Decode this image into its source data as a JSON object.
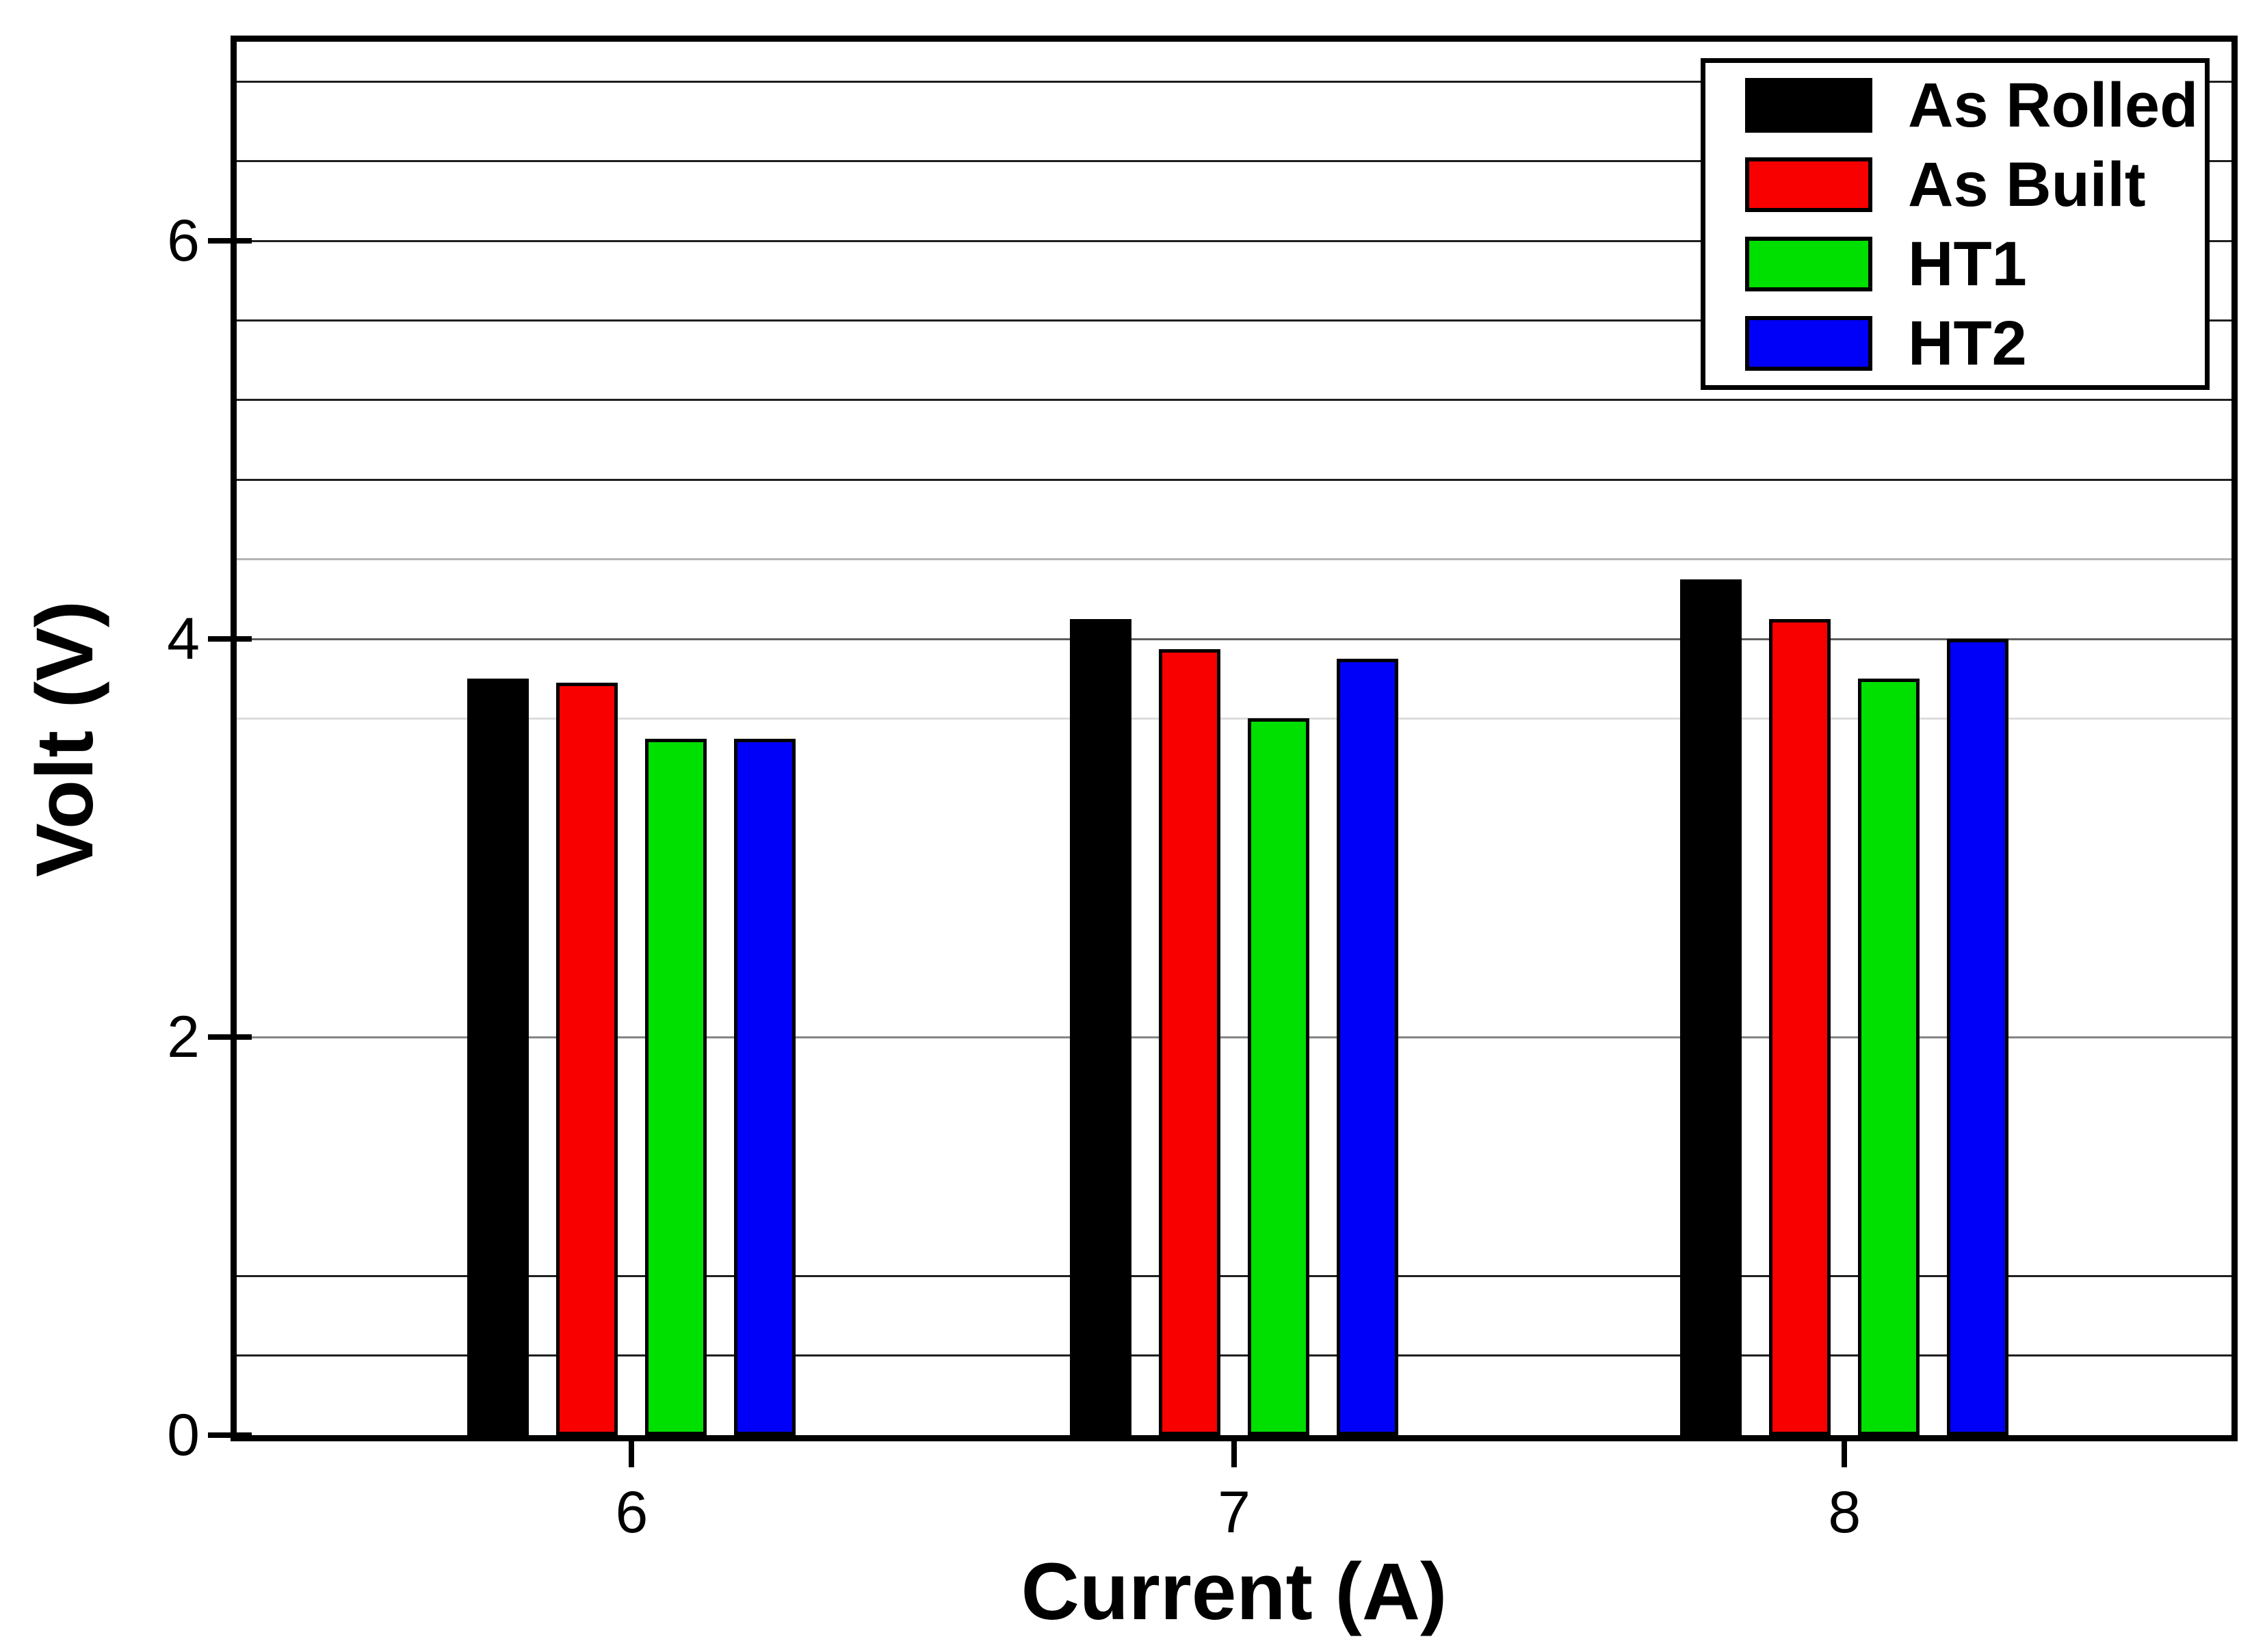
{
  "chart_data": {
    "type": "bar",
    "title": "",
    "xlabel": "Current (A)",
    "ylabel": "Volt (V)",
    "categories": [
      "6",
      "7",
      "8"
    ],
    "series": [
      {
        "name": "As Rolled",
        "color": "#000000",
        "values": [
          3.8,
          4.1,
          4.3
        ]
      },
      {
        "name": "As Built",
        "color": "#f80000",
        "values": [
          3.78,
          3.95,
          4.1
        ]
      },
      {
        "name": "HT1",
        "color": "#00e000",
        "values": [
          3.5,
          3.6,
          3.8
        ]
      },
      {
        "name": "HT2",
        "color": "#0000f8",
        "values": [
          3.5,
          3.9,
          4.0
        ]
      }
    ],
    "ylim": [
      0,
      7
    ],
    "yticks": [
      "0",
      "2",
      "4",
      "6"
    ],
    "ytick_values": [
      0,
      2,
      4,
      6
    ],
    "grid": "horizontal",
    "gridlines": [
      {
        "v": 0.4,
        "shade": "#1f1f1f"
      },
      {
        "v": 0.8,
        "shade": "#1f1f1f"
      },
      {
        "v": 2.0,
        "shade": "#858585"
      },
      {
        "v": 3.6,
        "shade": "#dcdcdc"
      },
      {
        "v": 4.0,
        "shade": "#5e5e5e"
      },
      {
        "v": 4.4,
        "shade": "#b5b5b5"
      },
      {
        "v": 4.8,
        "shade": "#1f1f1f"
      },
      {
        "v": 5.2,
        "shade": "#1f1f1f"
      },
      {
        "v": 5.6,
        "shade": "#1f1f1f"
      },
      {
        "v": 6.0,
        "shade": "#1f1f1f"
      },
      {
        "v": 6.4,
        "shade": "#1f1f1f"
      },
      {
        "v": 6.8,
        "shade": "#1f1f1f"
      }
    ],
    "legend_position": "top-right",
    "frame_color": "#000000",
    "background_color": "#ffffff"
  }
}
